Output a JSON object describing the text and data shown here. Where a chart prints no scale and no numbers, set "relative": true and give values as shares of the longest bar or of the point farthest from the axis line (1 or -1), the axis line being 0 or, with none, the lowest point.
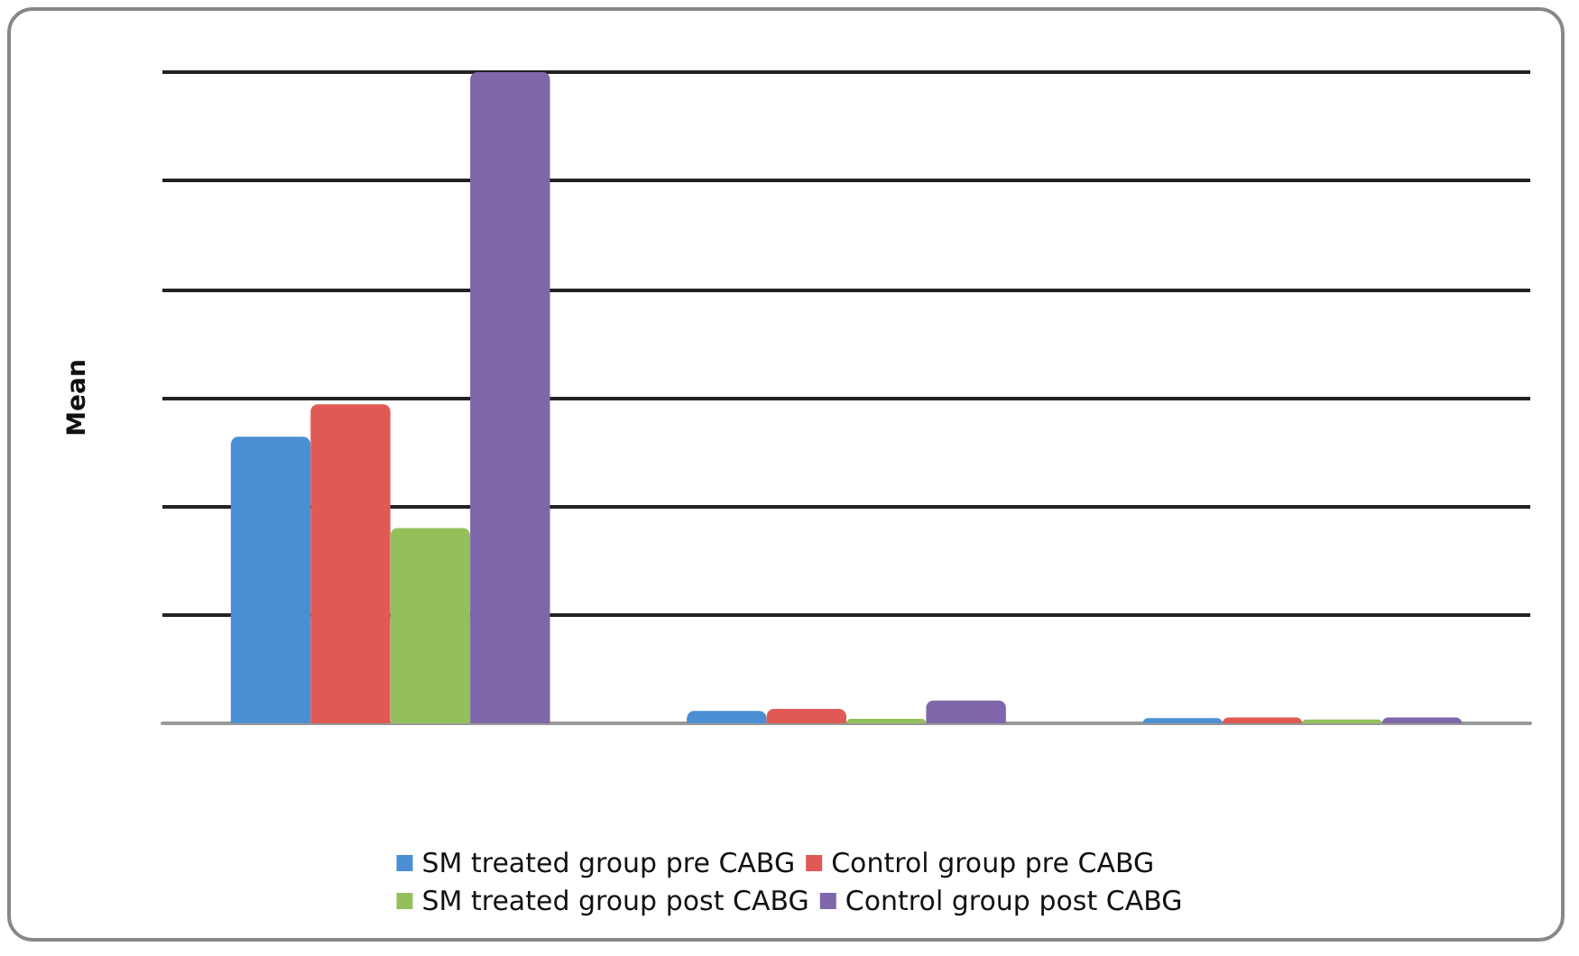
{
  "chart_data": {
    "type": "bar",
    "ylabel": "Mean",
    "relative": true,
    "categories": [
      null,
      null,
      null
    ],
    "series": [
      {
        "name": "SM treated group pre CABG",
        "color": "#4a8fd4",
        "values": [
          0.44,
          0.019,
          0.008
        ]
      },
      {
        "name": "Control group pre CABG",
        "color": "#e05a55",
        "values": [
          0.49,
          0.022,
          0.009
        ]
      },
      {
        "name": "SM treated group post CABG",
        "color": "#94c05c",
        "values": [
          0.3,
          0.007,
          0.006
        ]
      },
      {
        "name": "Control group post CABG",
        "color": "#8066aa",
        "values": [
          1,
          0.035,
          0.009
        ]
      }
    ],
    "grid": true,
    "legend": "bottom"
  }
}
